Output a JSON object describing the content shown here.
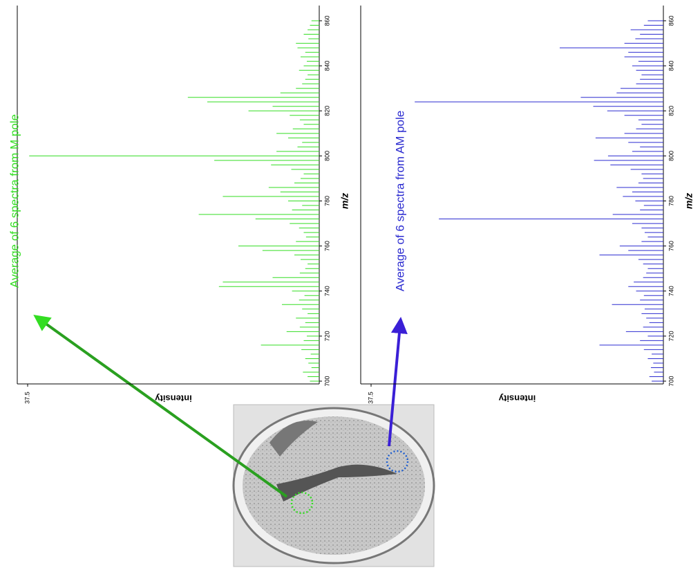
{
  "chart_data": [
    {
      "type": "stem",
      "title": "Average of 6 spectra from M pole",
      "xlabel": "m/z",
      "ylabel": "intensity",
      "color": "#33dd22",
      "x": [
        700,
        702,
        704,
        706,
        708,
        710,
        712,
        714,
        716,
        718,
        720,
        722,
        724,
        726,
        728,
        730,
        732,
        734,
        736,
        738,
        740,
        742,
        744,
        746,
        748,
        750,
        752,
        754,
        756,
        758,
        760,
        762,
        764,
        766,
        768,
        770,
        772,
        774,
        776,
        778,
        780,
        782,
        784,
        786,
        788,
        790,
        792,
        794,
        796,
        798,
        800,
        802,
        804,
        806,
        808,
        810,
        812,
        814,
        816,
        818,
        820,
        822,
        824,
        826,
        828,
        830,
        832,
        834,
        836,
        838,
        840,
        842,
        844,
        846,
        848,
        850,
        852,
        854,
        856,
        858,
        860
      ],
      "values": [
        1.2,
        1.5,
        2.1,
        1.0,
        1.4,
        1.8,
        1.1,
        2.3,
        7.5,
        2.0,
        1.6,
        4.2,
        2.5,
        1.8,
        3.0,
        1.5,
        2.2,
        4.8,
        2.6,
        1.9,
        3.5,
        12.9,
        12.4,
        6.0,
        2.5,
        1.8,
        1.5,
        2.4,
        3.2,
        7.3,
        10.4,
        3.0,
        1.7,
        2.0,
        2.6,
        3.8,
        8.2,
        15.5,
        3.5,
        2.2,
        4.0,
        12.4,
        5.0,
        6.5,
        3.2,
        2.4,
        2.0,
        3.6,
        6.2,
        13.5,
        37.3,
        5.5,
        2.8,
        2.2,
        4.0,
        5.5,
        3.4,
        2.0,
        2.5,
        3.8,
        9.1,
        6.0,
        14.4,
        16.9,
        5.0,
        3.0,
        2.2,
        1.8,
        1.5,
        2.6,
        2.0,
        1.6,
        2.4,
        1.8,
        2.8,
        3.0,
        1.4,
        2.0,
        1.5,
        1.2,
        1.0
      ],
      "xlim": [
        700,
        860
      ],
      "xticks": [
        700,
        720,
        740,
        760,
        780,
        800,
        820,
        840,
        860
      ],
      "ylim": [
        0,
        37.5
      ],
      "yticks": [
        37.5
      ]
    },
    {
      "type": "stem",
      "title": "Average of 6 spectra from AM pole",
      "xlabel": "m/z",
      "ylabel": "intensity",
      "color": "#2b2bd0",
      "x": [
        700,
        702,
        704,
        706,
        708,
        710,
        712,
        714,
        716,
        718,
        720,
        722,
        724,
        726,
        728,
        730,
        732,
        734,
        736,
        738,
        740,
        742,
        744,
        746,
        748,
        750,
        752,
        754,
        756,
        758,
        760,
        762,
        764,
        766,
        768,
        770,
        772,
        774,
        776,
        778,
        780,
        782,
        784,
        786,
        788,
        790,
        792,
        794,
        796,
        798,
        800,
        802,
        804,
        806,
        808,
        810,
        812,
        814,
        816,
        818,
        820,
        822,
        824,
        826,
        828,
        830,
        832,
        834,
        836,
        838,
        840,
        842,
        844,
        846,
        848,
        850,
        852,
        854,
        856,
        858,
        860
      ],
      "values": [
        1.5,
        1.8,
        1.2,
        1.6,
        1.3,
        2.0,
        1.5,
        2.5,
        8.2,
        3.0,
        2.0,
        4.8,
        2.6,
        1.8,
        2.2,
        2.8,
        2.4,
        6.6,
        3.0,
        2.5,
        3.5,
        4.5,
        3.8,
        2.6,
        2.2,
        2.0,
        2.6,
        3.2,
        8.2,
        4.5,
        5.6,
        2.8,
        2.0,
        2.4,
        2.8,
        4.0,
        28.8,
        6.5,
        3.0,
        2.5,
        3.6,
        5.2,
        4.0,
        6.0,
        3.2,
        2.6,
        2.8,
        4.2,
        6.8,
        8.9,
        7.1,
        4.0,
        3.0,
        4.5,
        8.7,
        5.0,
        3.5,
        2.8,
        3.2,
        5.0,
        7.2,
        9.0,
        31.9,
        10.6,
        6.0,
        5.5,
        3.5,
        3.0,
        2.8,
        3.5,
        4.0,
        3.2,
        5.0,
        4.5,
        13.3,
        5.0,
        3.6,
        3.0,
        4.2,
        2.5,
        2.0
      ],
      "xlim": [
        700,
        860
      ],
      "xticks": [
        700,
        720,
        740,
        760,
        780,
        800,
        820,
        840,
        860
      ],
      "ylim": [
        0,
        37.5
      ],
      "yticks": [
        37.5
      ]
    }
  ]
}
